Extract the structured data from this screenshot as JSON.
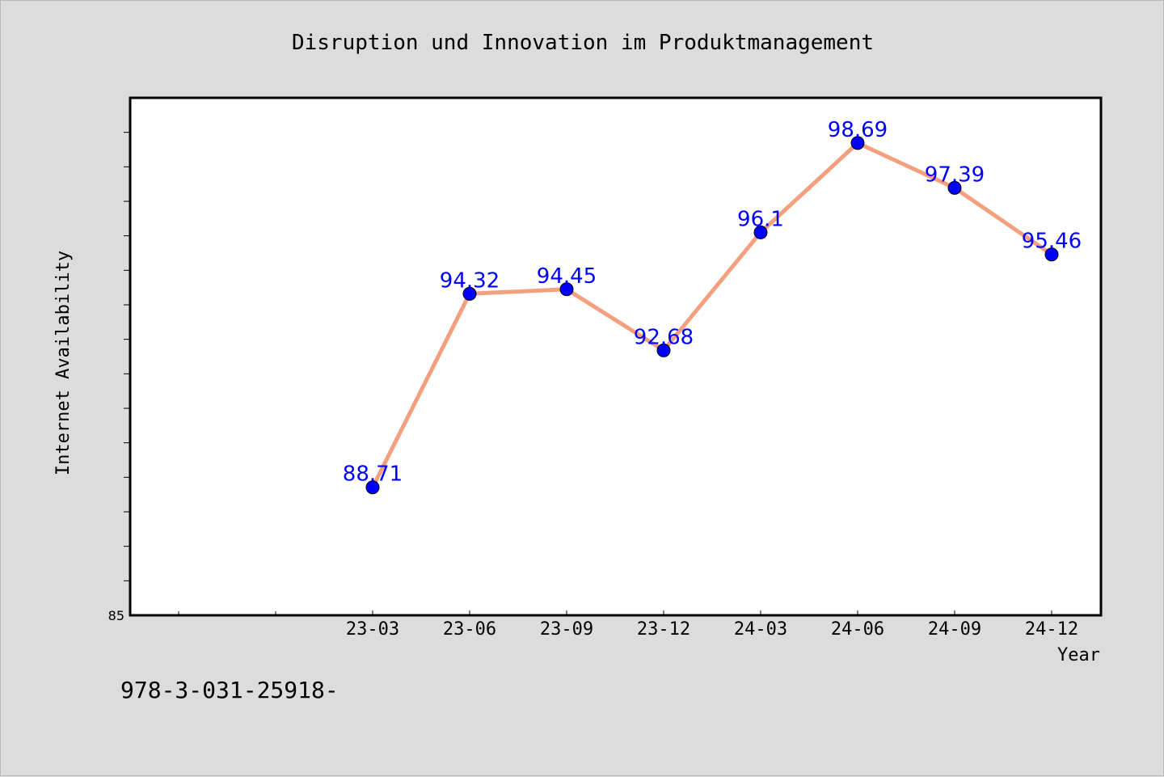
{
  "chart_data": {
    "type": "line",
    "title": "Disruption und Innovation im Produktmanagement",
    "xlabel": "Year",
    "ylabel": "Internet Availability",
    "categories": [
      "23-03",
      "23-06",
      "23-09",
      "23-12",
      "24-03",
      "24-06",
      "24-09",
      "24-12"
    ],
    "series": [
      {
        "values": [
          88.71,
          94.32,
          94.45,
          92.68,
          96.1,
          98.69,
          97.39,
          95.46
        ],
        "labels": [
          "88.71",
          "94.32",
          "94.45",
          "92.68",
          "96.1",
          "98.69",
          "97.39",
          "95.46"
        ]
      }
    ],
    "ylim": [
      85,
      100
    ],
    "y_tick_label": "85",
    "grid": false,
    "legend": "none",
    "colors": {
      "line": "#f4a07e",
      "marker": "#0000ff",
      "data_label": "#0000ff",
      "plot_background": "#ffffff",
      "figure_background": "#dcdcdc"
    }
  },
  "footer": {
    "isbn_text": "978-3-031-25918-"
  }
}
